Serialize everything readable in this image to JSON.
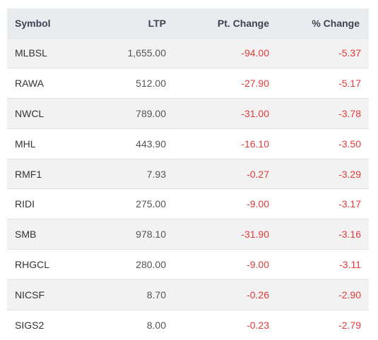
{
  "table": {
    "headers": {
      "symbol": "Symbol",
      "ltp": "LTP",
      "pt_change": "Pt. Change",
      "pct_change": "% Change"
    },
    "rows": [
      {
        "symbol": "MLBSL",
        "ltp": "1,655.00",
        "pt_change": "-94.00",
        "pct_change": "-5.37"
      },
      {
        "symbol": "RAWA",
        "ltp": "512.00",
        "pt_change": "-27.90",
        "pct_change": "-5.17"
      },
      {
        "symbol": "NWCL",
        "ltp": "789.00",
        "pt_change": "-31.00",
        "pct_change": "-3.78"
      },
      {
        "symbol": "MHL",
        "ltp": "443.90",
        "pt_change": "-16.10",
        "pct_change": "-3.50"
      },
      {
        "symbol": "RMF1",
        "ltp": "7.93",
        "pt_change": "-0.27",
        "pct_change": "-3.29"
      },
      {
        "symbol": "RIDI",
        "ltp": "275.00",
        "pt_change": "-9.00",
        "pct_change": "-3.17"
      },
      {
        "symbol": "SMB",
        "ltp": "978.10",
        "pt_change": "-31.90",
        "pct_change": "-3.16"
      },
      {
        "symbol": "RHGCL",
        "ltp": "280.00",
        "pt_change": "-9.00",
        "pct_change": "-3.11"
      },
      {
        "symbol": "NICSF",
        "ltp": "8.70",
        "pt_change": "-0.26",
        "pct_change": "-2.90"
      },
      {
        "symbol": "SIGS2",
        "ltp": "8.00",
        "pt_change": "-0.23",
        "pct_change": "-2.79"
      }
    ]
  },
  "colors": {
    "negative": "#e03b3b",
    "header_bg": "#e9ecef",
    "stripe_bg": "#f2f2f2"
  }
}
